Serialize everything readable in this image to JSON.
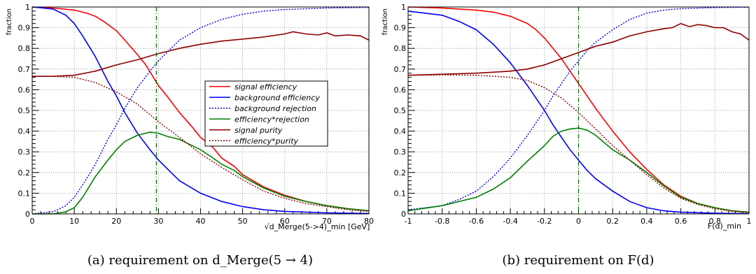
{
  "chart_data": [
    {
      "type": "line",
      "ylabel": "fraction",
      "xlabel": "√d_Merge(5->4)_min [GeV]",
      "xlim": [
        0,
        80
      ],
      "ylim": [
        0,
        1
      ],
      "xticks": [
        "0",
        "10",
        "20",
        "30",
        "40",
        "50",
        "60",
        "70",
        "80"
      ],
      "yticks": [
        "0",
        "0.1",
        "0.2",
        "0.3",
        "0.4",
        "0.5",
        "0.6",
        "0.7",
        "0.8",
        "0.9",
        "1"
      ],
      "grid": true,
      "cut_line_x": 29.5,
      "caption": "(a) requirement on d_Merge(5 → 4)",
      "legend_position": "center-right",
      "series": [
        {
          "name": "signal efficiency",
          "color": "#ff0000",
          "style": "solid",
          "x": [
            0,
            5,
            10,
            13,
            15,
            17,
            20,
            22,
            25,
            27,
            30,
            32,
            35,
            38,
            40,
            43,
            45,
            48,
            50,
            55,
            60,
            65,
            70,
            75,
            80
          ],
          "y": [
            1,
            0.995,
            0.985,
            0.97,
            0.955,
            0.93,
            0.885,
            0.84,
            0.77,
            0.72,
            0.62,
            0.57,
            0.49,
            0.42,
            0.37,
            0.32,
            0.27,
            0.23,
            0.19,
            0.13,
            0.09,
            0.06,
            0.04,
            0.025,
            0.015
          ]
        },
        {
          "name": "background efficiency",
          "color": "#0000ff",
          "style": "solid",
          "x": [
            0,
            5,
            8,
            10,
            12,
            15,
            18,
            20,
            22,
            25,
            28,
            30,
            33,
            35,
            40,
            45,
            50,
            55,
            60,
            70,
            80
          ],
          "y": [
            1,
            0.99,
            0.96,
            0.92,
            0.86,
            0.76,
            0.64,
            0.57,
            0.49,
            0.39,
            0.31,
            0.26,
            0.2,
            0.16,
            0.1,
            0.06,
            0.035,
            0.02,
            0.012,
            0.005,
            0.002
          ]
        },
        {
          "name": "background rejection",
          "color": "#0000ff",
          "style": "dashed",
          "x": [
            0,
            5,
            8,
            10,
            12,
            15,
            18,
            20,
            22,
            25,
            28,
            30,
            33,
            35,
            40,
            45,
            50,
            55,
            60,
            70,
            80
          ],
          "y": [
            0,
            0.01,
            0.04,
            0.08,
            0.14,
            0.24,
            0.36,
            0.43,
            0.51,
            0.61,
            0.69,
            0.74,
            0.8,
            0.84,
            0.9,
            0.94,
            0.965,
            0.98,
            0.988,
            0.995,
            0.998
          ]
        },
        {
          "name": "efficiency*rejection",
          "color": "#008000",
          "style": "solid",
          "x": [
            0,
            5,
            8,
            10,
            12,
            15,
            18,
            20,
            22,
            25,
            28,
            30,
            32,
            35,
            38,
            40,
            43,
            45,
            48,
            50,
            55,
            60,
            65,
            70,
            75,
            80
          ],
          "y": [
            0,
            0,
            0.01,
            0.03,
            0.08,
            0.18,
            0.26,
            0.31,
            0.35,
            0.38,
            0.395,
            0.39,
            0.375,
            0.36,
            0.33,
            0.31,
            0.27,
            0.24,
            0.21,
            0.18,
            0.125,
            0.085,
            0.06,
            0.04,
            0.025,
            0.015
          ]
        },
        {
          "name": "signal purity",
          "color": "#8b0000",
          "style": "solid",
          "x": [
            0,
            5,
            10,
            15,
            20,
            25,
            30,
            35,
            40,
            45,
            50,
            55,
            60,
            62,
            65,
            68,
            70,
            72,
            75,
            78,
            80
          ],
          "y": [
            0.665,
            0.665,
            0.67,
            0.69,
            0.72,
            0.745,
            0.775,
            0.8,
            0.82,
            0.835,
            0.845,
            0.855,
            0.87,
            0.88,
            0.87,
            0.865,
            0.875,
            0.86,
            0.865,
            0.86,
            0.84
          ]
        },
        {
          "name": "efficiency*purity",
          "color": "#8b0000",
          "style": "dashed",
          "x": [
            0,
            5,
            10,
            15,
            20,
            25,
            30,
            35,
            40,
            45,
            50,
            55,
            60,
            65,
            70,
            75,
            80
          ],
          "y": [
            0.665,
            0.665,
            0.66,
            0.635,
            0.59,
            0.53,
            0.445,
            0.37,
            0.29,
            0.225,
            0.165,
            0.11,
            0.075,
            0.05,
            0.035,
            0.02,
            0.012
          ]
        }
      ]
    },
    {
      "type": "line",
      "ylabel": "fraction",
      "xlabel": "F(d)_min",
      "xlim": [
        -1,
        1
      ],
      "ylim": [
        0,
        1
      ],
      "xticks": [
        "-1",
        "-0.8",
        "-0.6",
        "-0.4",
        "-0.2",
        "0",
        "0.2",
        "0.4",
        "0.6",
        "0.8",
        "1"
      ],
      "yticks": [
        "0",
        "0.1",
        "0.2",
        "0.3",
        "0.4",
        "0.5",
        "0.6",
        "0.7",
        "0.8",
        "0.9",
        "1"
      ],
      "grid": true,
      "cut_line_x": 0,
      "caption": "(b) requirement on F(d)",
      "series": [
        {
          "name": "signal efficiency",
          "color": "#ff0000",
          "style": "solid",
          "x": [
            -1,
            -0.8,
            -0.6,
            -0.5,
            -0.4,
            -0.3,
            -0.25,
            -0.2,
            -0.15,
            -0.1,
            -0.05,
            0,
            0.05,
            0.1,
            0.15,
            0.2,
            0.3,
            0.4,
            0.5,
            0.6,
            0.7,
            0.8,
            0.9,
            1
          ],
          "y": [
            1,
            0.995,
            0.985,
            0.975,
            0.955,
            0.92,
            0.89,
            0.85,
            0.8,
            0.75,
            0.69,
            0.63,
            0.57,
            0.51,
            0.455,
            0.4,
            0.3,
            0.215,
            0.14,
            0.085,
            0.05,
            0.03,
            0.015,
            0.008
          ]
        },
        {
          "name": "background efficiency",
          "color": "#0000ff",
          "style": "solid",
          "x": [
            -1,
            -0.8,
            -0.7,
            -0.6,
            -0.5,
            -0.4,
            -0.3,
            -0.2,
            -0.15,
            -0.1,
            -0.05,
            0,
            0.05,
            0.1,
            0.2,
            0.3,
            0.4,
            0.5,
            0.6,
            0.8,
            1
          ],
          "y": [
            0.98,
            0.96,
            0.93,
            0.89,
            0.82,
            0.73,
            0.62,
            0.5,
            0.43,
            0.37,
            0.31,
            0.26,
            0.21,
            0.17,
            0.11,
            0.06,
            0.03,
            0.015,
            0.008,
            0.003,
            0.001
          ]
        },
        {
          "name": "background rejection",
          "color": "#0000ff",
          "style": "dashed",
          "x": [
            -1,
            -0.8,
            -0.7,
            -0.6,
            -0.5,
            -0.4,
            -0.3,
            -0.2,
            -0.15,
            -0.1,
            -0.05,
            0,
            0.05,
            0.1,
            0.2,
            0.3,
            0.4,
            0.5,
            0.6,
            0.8,
            1
          ],
          "y": [
            0.02,
            0.04,
            0.07,
            0.11,
            0.18,
            0.27,
            0.38,
            0.5,
            0.57,
            0.63,
            0.69,
            0.74,
            0.79,
            0.83,
            0.89,
            0.94,
            0.97,
            0.985,
            0.992,
            0.997,
            0.999
          ]
        },
        {
          "name": "efficiency*rejection",
          "color": "#008000",
          "style": "solid",
          "x": [
            -1,
            -0.8,
            -0.6,
            -0.5,
            -0.4,
            -0.3,
            -0.2,
            -0.15,
            -0.1,
            -0.05,
            0,
            0.05,
            0.1,
            0.15,
            0.2,
            0.3,
            0.4,
            0.5,
            0.6,
            0.7,
            0.8,
            0.9,
            1
          ],
          "y": [
            0.015,
            0.04,
            0.08,
            0.12,
            0.175,
            0.255,
            0.33,
            0.375,
            0.4,
            0.41,
            0.415,
            0.405,
            0.38,
            0.345,
            0.31,
            0.26,
            0.2,
            0.135,
            0.08,
            0.05,
            0.03,
            0.015,
            0.008
          ]
        },
        {
          "name": "signal purity",
          "color": "#8b0000",
          "style": "solid",
          "x": [
            -1,
            -0.8,
            -0.6,
            -0.4,
            -0.3,
            -0.2,
            -0.1,
            0,
            0.1,
            0.2,
            0.3,
            0.4,
            0.5,
            0.55,
            0.6,
            0.65,
            0.7,
            0.75,
            0.8,
            0.85,
            0.9,
            0.95,
            1
          ],
          "y": [
            0.67,
            0.675,
            0.68,
            0.69,
            0.7,
            0.72,
            0.75,
            0.78,
            0.81,
            0.83,
            0.86,
            0.88,
            0.895,
            0.9,
            0.92,
            0.905,
            0.915,
            0.91,
            0.9,
            0.9,
            0.88,
            0.87,
            0.84
          ]
        },
        {
          "name": "efficiency*purity",
          "color": "#8b0000",
          "style": "dashed",
          "x": [
            -1,
            -0.8,
            -0.6,
            -0.4,
            -0.3,
            -0.2,
            -0.1,
            0,
            0.1,
            0.2,
            0.3,
            0.4,
            0.5,
            0.6,
            0.7,
            0.8,
            0.9,
            1
          ],
          "y": [
            0.67,
            0.672,
            0.67,
            0.66,
            0.645,
            0.61,
            0.56,
            0.49,
            0.41,
            0.33,
            0.26,
            0.19,
            0.125,
            0.075,
            0.045,
            0.025,
            0.012,
            0.006
          ]
        }
      ]
    }
  ]
}
